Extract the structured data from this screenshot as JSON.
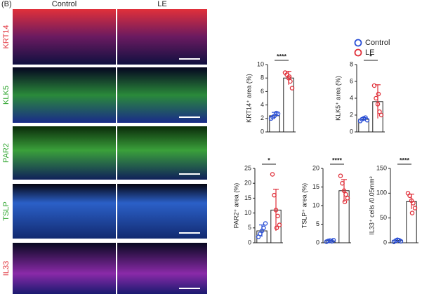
{
  "panel_label": "(B)",
  "columns": [
    "Control",
    "LE"
  ],
  "rows": [
    {
      "label": "KRT14",
      "color": "#e0303a"
    },
    {
      "label": "KLK5",
      "color": "#2fa52f"
    },
    {
      "label": "PAR2",
      "color": "#2fa52f"
    },
    {
      "label": "TSLP",
      "color": "#2fa52f"
    },
    {
      "label": "IL33",
      "color": "#e0303a"
    }
  ],
  "chart_data": [
    {
      "type": "bar",
      "ylabel": "KRT14⁺ area (%)",
      "ylim": [
        0,
        10
      ],
      "yticks": [
        0,
        2,
        4,
        6,
        8,
        10
      ],
      "significance": "****",
      "series": [
        {
          "name": "Control",
          "color": "#2a4fd6",
          "values": [
            2.4
          ],
          "errors": [
            0.5
          ],
          "points": [
            2.0,
            2.2,
            2.4,
            2.8,
            2.7
          ]
        },
        {
          "name": "LE",
          "color": "#e0303a",
          "values": [
            8.0
          ],
          "errors": [
            1.0
          ],
          "points": [
            8.8,
            8.5,
            8.0,
            7.5,
            6.5,
            8.2
          ]
        }
      ]
    },
    {
      "type": "bar",
      "ylabel": "KLK5⁺ area (%)",
      "ylim": [
        0,
        8
      ],
      "yticks": [
        0,
        2,
        4,
        6,
        8
      ],
      "significance": "*",
      "series": [
        {
          "name": "Control",
          "color": "#2a4fd6",
          "values": [
            1.5
          ],
          "errors": [
            0.2
          ],
          "points": [
            1.3,
            1.5,
            1.6,
            1.7,
            1.4
          ]
        },
        {
          "name": "LE",
          "color": "#e0303a",
          "values": [
            3.6
          ],
          "errors": [
            2.0
          ],
          "points": [
            5.5,
            4.0,
            3.3,
            2.4,
            2.0,
            4.5
          ]
        }
      ]
    },
    {
      "type": "bar",
      "ylabel": "PAR2⁺ area (%)",
      "ylim": [
        0,
        25
      ],
      "yticks": [
        0,
        5,
        10,
        15,
        20,
        25
      ],
      "significance": "*",
      "series": [
        {
          "name": "Control",
          "color": "#2a4fd6",
          "values": [
            4
          ],
          "errors": [
            2
          ],
          "points": [
            2,
            3,
            4,
            5,
            6.5
          ]
        },
        {
          "name": "LE",
          "color": "#e0303a",
          "values": [
            11
          ],
          "errors": [
            7
          ],
          "points": [
            23,
            16,
            11,
            9,
            6,
            5
          ]
        }
      ]
    },
    {
      "type": "bar",
      "ylabel": "TSLP⁺ area (%)",
      "ylim": [
        0,
        20
      ],
      "yticks": [
        0,
        5,
        10,
        15,
        20
      ],
      "significance": "****",
      "series": [
        {
          "name": "Control",
          "color": "#2a4fd6",
          "values": [
            0.5
          ],
          "errors": [
            0.2
          ],
          "points": [
            0.3,
            0.5,
            0.6,
            0.4,
            0.7
          ]
        },
        {
          "name": "LE",
          "color": "#e0303a",
          "values": [
            14
          ],
          "errors": [
            3
          ],
          "points": [
            18,
            16,
            14,
            13,
            12,
            11
          ]
        }
      ]
    },
    {
      "type": "bar",
      "ylabel": "IL33⁺ cells /0.05mm²",
      "ylim": [
        0,
        150
      ],
      "yticks": [
        0,
        50,
        100,
        150
      ],
      "significance": "****",
      "series": [
        {
          "name": "Control",
          "color": "#2a4fd6",
          "values": [
            5
          ],
          "errors": [
            3
          ],
          "points": [
            2,
            4,
            6,
            5,
            3
          ]
        },
        {
          "name": "LE",
          "color": "#e0303a",
          "values": [
            83
          ],
          "errors": [
            15
          ],
          "points": [
            100,
            95,
            85,
            80,
            70,
            60
          ]
        }
      ]
    }
  ]
}
